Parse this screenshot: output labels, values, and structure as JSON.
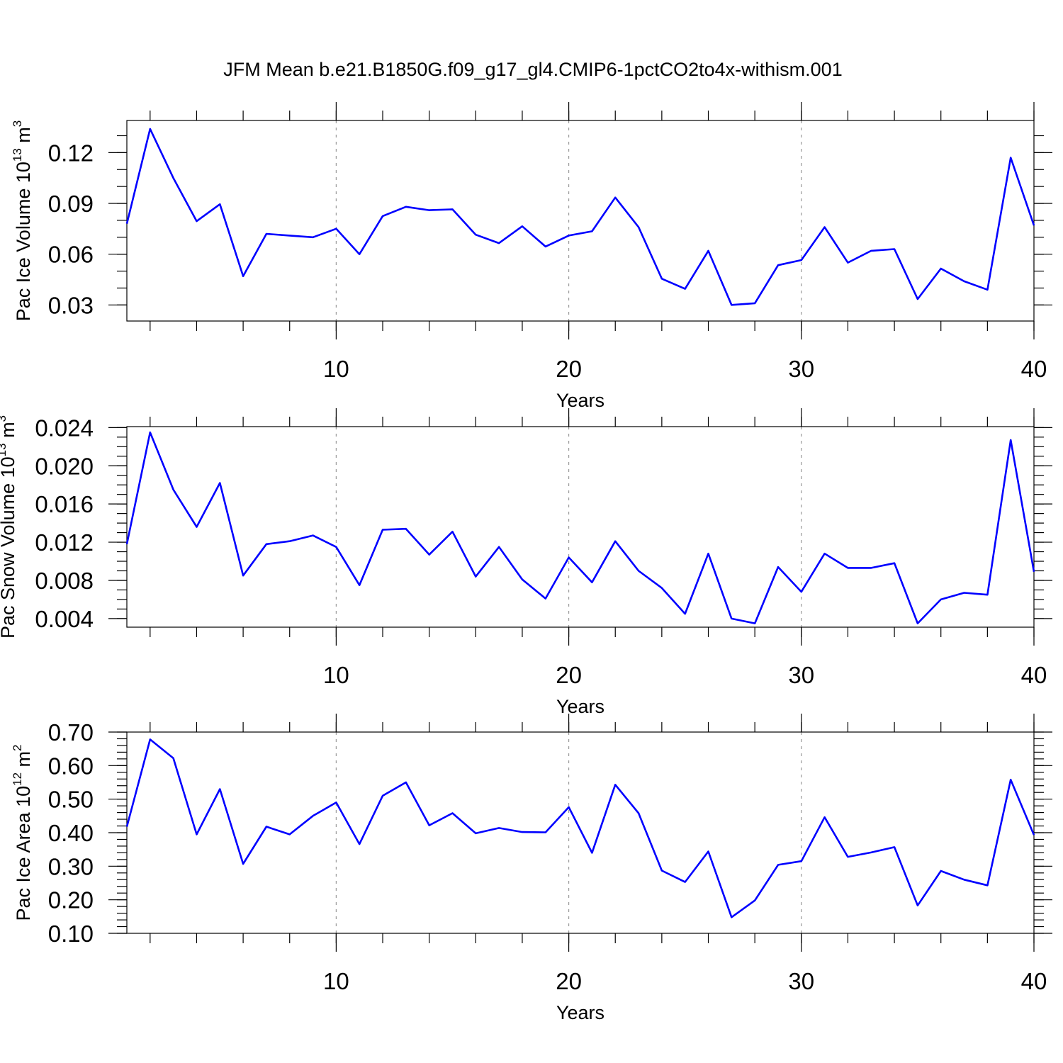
{
  "title": "JFM Mean b.e21.B1850G.f09_g17_gl4.CMIP6-1pctCO2to4x-withism.001",
  "colors": {
    "series": "#0000ff",
    "grid": "#999999",
    "axes": "#000000"
  },
  "chart_data": [
    {
      "type": "line",
      "ylabel_base": "Pac Ice Volume 10",
      "ylabel_exp": "13",
      "ylabel_unit": " m",
      "ylabel_unit_exp": "3",
      "xlabel": "Years",
      "xlim": [
        1,
        40
      ],
      "ylim": [
        0.0205,
        0.139
      ],
      "x_ticks": [
        10,
        20,
        30,
        40
      ],
      "x_tick_labels": [
        "10",
        "20",
        "30",
        "40"
      ],
      "x_minor_step": 2,
      "y_ticks": [
        0.03,
        0.06,
        0.09,
        0.12
      ],
      "y_tick_labels": [
        "0.03",
        "0.06",
        "0.09",
        "0.12"
      ],
      "y_minor_step": 0.01,
      "grid": "x-dashed",
      "x": [
        1,
        2,
        3,
        4,
        5,
        6,
        7,
        8,
        9,
        10,
        11,
        12,
        13,
        14,
        15,
        16,
        17,
        18,
        19,
        20,
        21,
        22,
        23,
        24,
        25,
        26,
        27,
        28,
        29,
        30,
        31,
        32,
        33,
        34,
        35,
        36,
        37,
        38,
        39,
        40
      ],
      "values": [
        0.078,
        0.134,
        0.105,
        0.0795,
        0.0895,
        0.047,
        0.072,
        0.071,
        0.07,
        0.075,
        0.06,
        0.0825,
        0.088,
        0.086,
        0.0865,
        0.0715,
        0.0665,
        0.0765,
        0.0645,
        0.071,
        0.0735,
        0.0935,
        0.076,
        0.0455,
        0.0395,
        0.062,
        0.03,
        0.031,
        0.0535,
        0.0565,
        0.076,
        0.055,
        0.062,
        0.063,
        0.0335,
        0.0515,
        0.044,
        0.039,
        0.117,
        0.077
      ]
    },
    {
      "type": "line",
      "ylabel_base": "Pac Snow Volume 10",
      "ylabel_exp": "13",
      "ylabel_unit": " m",
      "ylabel_unit_exp": "3",
      "xlabel": "Years",
      "xlim": [
        1,
        40
      ],
      "ylim": [
        0.0031,
        0.0241
      ],
      "x_ticks": [
        10,
        20,
        30,
        40
      ],
      "x_tick_labels": [
        "10",
        "20",
        "30",
        "40"
      ],
      "x_minor_step": 2,
      "y_ticks": [
        0.004,
        0.008,
        0.012,
        0.016,
        0.02,
        0.024
      ],
      "y_tick_labels": [
        "0.004",
        "0.008",
        "0.012",
        "0.016",
        "0.020",
        "0.024"
      ],
      "y_minor_step": 0.001,
      "grid": "x-dashed",
      "x": [
        1,
        2,
        3,
        4,
        5,
        6,
        7,
        8,
        9,
        10,
        11,
        12,
        13,
        14,
        15,
        16,
        17,
        18,
        19,
        20,
        21,
        22,
        23,
        24,
        25,
        26,
        27,
        28,
        29,
        30,
        31,
        32,
        33,
        34,
        35,
        36,
        37,
        38,
        39,
        40
      ],
      "values": [
        0.0118,
        0.0235,
        0.0175,
        0.0136,
        0.0182,
        0.0085,
        0.0118,
        0.0121,
        0.0127,
        0.0115,
        0.0075,
        0.0133,
        0.0134,
        0.0107,
        0.0131,
        0.0084,
        0.0115,
        0.0081,
        0.0061,
        0.0104,
        0.0078,
        0.0121,
        0.009,
        0.0072,
        0.0045,
        0.0108,
        0.004,
        0.0035,
        0.0094,
        0.0068,
        0.0108,
        0.0093,
        0.0093,
        0.0098,
        0.0035,
        0.006,
        0.0067,
        0.0065,
        0.0227,
        0.0089
      ]
    },
    {
      "type": "line",
      "ylabel_base": "Pac Ice Area 10",
      "ylabel_exp": "12",
      "ylabel_unit": " m",
      "ylabel_unit_exp": "2",
      "xlabel": "Years",
      "xlim": [
        1,
        40
      ],
      "ylim": [
        0.1,
        0.7
      ],
      "x_ticks": [
        10,
        20,
        30,
        40
      ],
      "x_tick_labels": [
        "10",
        "20",
        "30",
        "40"
      ],
      "x_minor_step": 2,
      "y_ticks": [
        0.1,
        0.2,
        0.3,
        0.4,
        0.5,
        0.6,
        0.7
      ],
      "y_tick_labels": [
        "0.10",
        "0.20",
        "0.30",
        "0.40",
        "0.50",
        "0.60",
        "0.70"
      ],
      "y_minor_step": 0.02,
      "grid": "x-dashed",
      "x": [
        1,
        2,
        3,
        4,
        5,
        6,
        7,
        8,
        9,
        10,
        11,
        12,
        13,
        14,
        15,
        16,
        17,
        18,
        19,
        20,
        21,
        22,
        23,
        24,
        25,
        26,
        27,
        28,
        29,
        30,
        31,
        32,
        33,
        34,
        35,
        36,
        37,
        38,
        39,
        40
      ],
      "values": [
        0.418,
        0.678,
        0.622,
        0.395,
        0.53,
        0.307,
        0.418,
        0.395,
        0.45,
        0.49,
        0.366,
        0.51,
        0.55,
        0.422,
        0.458,
        0.398,
        0.414,
        0.402,
        0.401,
        0.476,
        0.34,
        0.543,
        0.458,
        0.287,
        0.253,
        0.344,
        0.148,
        0.198,
        0.304,
        0.315,
        0.446,
        0.328,
        0.341,
        0.357,
        0.183,
        0.286,
        0.26,
        0.243,
        0.558,
        0.393
      ]
    }
  ]
}
